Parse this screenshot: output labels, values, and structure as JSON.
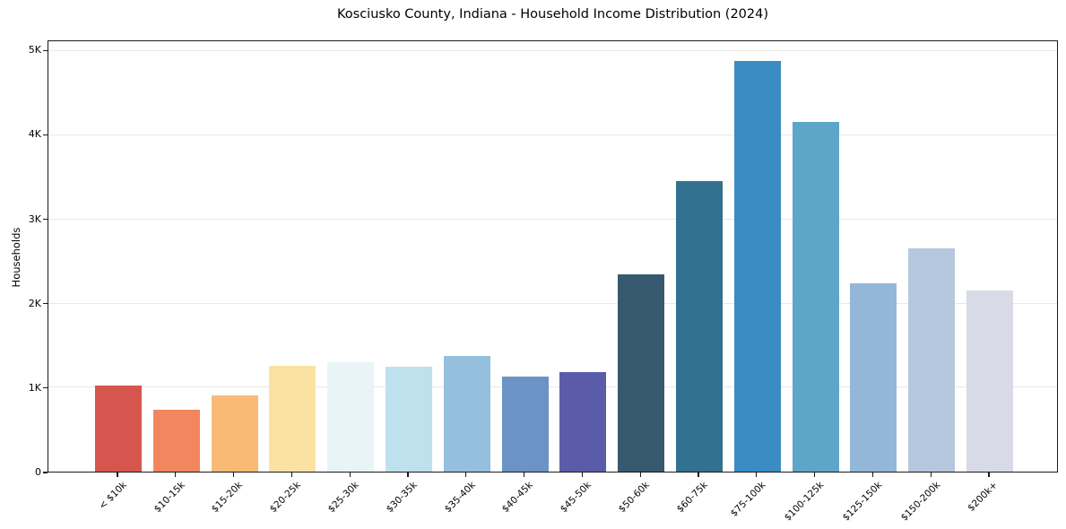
{
  "title": "Kosciusko County, Indiana - Household Income Distribution (2024)",
  "chart_data": {
    "type": "bar",
    "title": "Kosciusko County, Indiana - Household Income Distribution (2024)",
    "xlabel": "",
    "ylabel": "Households",
    "categories": [
      "< $10k",
      "$10-15k",
      "$15-20k",
      "$20-25k",
      "$25-30k",
      "$30-35k",
      "$35-40k",
      "$40-45k",
      "$45-50k",
      "$50-60k",
      "$60-75k",
      "$75-100k",
      "$100-125k",
      "$125-150k",
      "$150-200k",
      "$200k+"
    ],
    "values": [
      1020,
      730,
      905,
      1255,
      1300,
      1245,
      1370,
      1130,
      1180,
      2340,
      3440,
      4870,
      4140,
      2230,
      2650,
      2150
    ],
    "bar_colors": [
      "#d6564f",
      "#f2875f",
      "#f9ba76",
      "#fce2a2",
      "#e8f4f8",
      "#bfe0ed",
      "#94c0dd",
      "#6b93c5",
      "#5b5ca9",
      "#36596f",
      "#32718f",
      "#398dc2",
      "#5ea5ca",
      "#93b7d8",
      "#b6c8de",
      "#d8dae7"
    ],
    "y_tick_labels": [
      "0",
      "1K",
      "2K",
      "3K",
      "4K",
      "5K"
    ],
    "y_tick_values": [
      0,
      1000,
      2000,
      3000,
      4000,
      5000
    ],
    "ylim": [
      0,
      5120
    ],
    "grid": "horizontal",
    "legend_position": "none",
    "background_color": "#ffffff",
    "text_color": "#000000"
  }
}
